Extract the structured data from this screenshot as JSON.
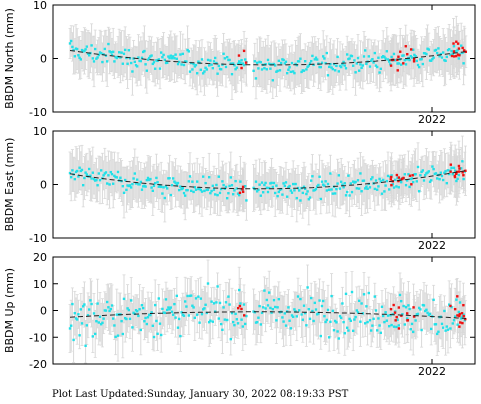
{
  "chart_data": [
    {
      "type": "scatter",
      "ylabel": "BBDM North (mm)",
      "ylim": [
        -10,
        10
      ],
      "yticks": [
        -10,
        0,
        10
      ],
      "x_tick_label": "2022",
      "trend": {
        "start": 1.5,
        "mid": -1.2,
        "end": 1.3
      },
      "series": [
        {
          "color": "#22e0e8",
          "count": 330,
          "noise": 1.4
        },
        {
          "color": "#ee1111",
          "count": 30,
          "noise": 1.6
        }
      ]
    },
    {
      "type": "scatter",
      "ylabel": "BBDM East (mm)",
      "ylim": [
        -10,
        10
      ],
      "yticks": [
        -10,
        0,
        10
      ],
      "x_tick_label": "2022",
      "trend": {
        "start": 2.0,
        "mid": -0.8,
        "end": 2.6
      },
      "series": [
        {
          "color": "#22e0e8",
          "count": 330,
          "noise": 1.4
        },
        {
          "color": "#ee1111",
          "count": 30,
          "noise": 1.0
        }
      ]
    },
    {
      "type": "scatter",
      "ylabel": "BBDM Up (mm)",
      "ylim": [
        -20,
        20
      ],
      "yticks": [
        -20,
        -10,
        0,
        10,
        20
      ],
      "x_tick_label": "2022",
      "trend": {
        "start": -2.5,
        "mid": -0.5,
        "end": -3.0
      },
      "series": [
        {
          "color": "#22e0e8",
          "count": 330,
          "noise": 5.5
        },
        {
          "color": "#ee1111",
          "count": 30,
          "noise": 4.0
        }
      ]
    }
  ],
  "footer": {
    "label": "Plot Last Updated:",
    "value": "Sunday, January 30, 2022 08:19:33 PST"
  }
}
